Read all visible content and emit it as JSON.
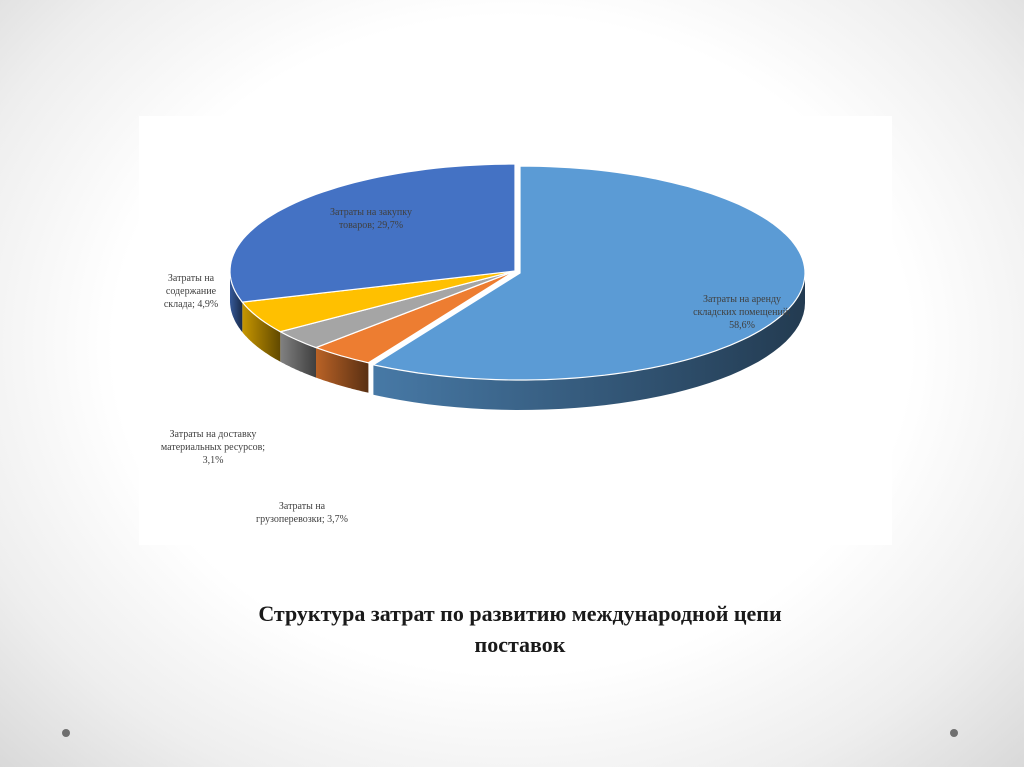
{
  "slide": {
    "caption_line1": "Структура затрат по развитию международной цепи",
    "caption_line2": "поставок"
  },
  "chart_data": {
    "type": "pie",
    "title": "",
    "three_d": true,
    "slices": [
      {
        "label": "Затраты на аренду складских помещений",
        "value": 58.6,
        "value_text": "58,6%",
        "color": "#5b9bd5",
        "label_lines": [
          "Затраты на аренду",
          "складских помещений;",
          "58,6%"
        ]
      },
      {
        "label": "Затраты на грузоперевозки",
        "value": 3.7,
        "value_text": "3,7%",
        "color": "#ed7d31",
        "label_lines": [
          "Затраты на",
          "грузоперевозки; 3,7%"
        ]
      },
      {
        "label": "Затраты на доставку материальных ресурсов",
        "value": 3.1,
        "value_text": "3,1%",
        "color": "#a5a5a5",
        "label_lines": [
          "Затраты на доставку",
          "материальных ресурсов;",
          "3,1%"
        ]
      },
      {
        "label": "Затраты на содержание склада",
        "value": 4.9,
        "value_text": "4,9%",
        "color": "#ffc000",
        "label_lines": [
          "Затраты на",
          "содержание",
          "склада; 4,9%"
        ]
      },
      {
        "label": "Затраты на закупку товаров",
        "value": 29.7,
        "value_text": "29,7%",
        "color": "#4472c4",
        "label_lines": [
          "Затраты на закупку",
          "товаров; 29,7%"
        ]
      }
    ]
  }
}
